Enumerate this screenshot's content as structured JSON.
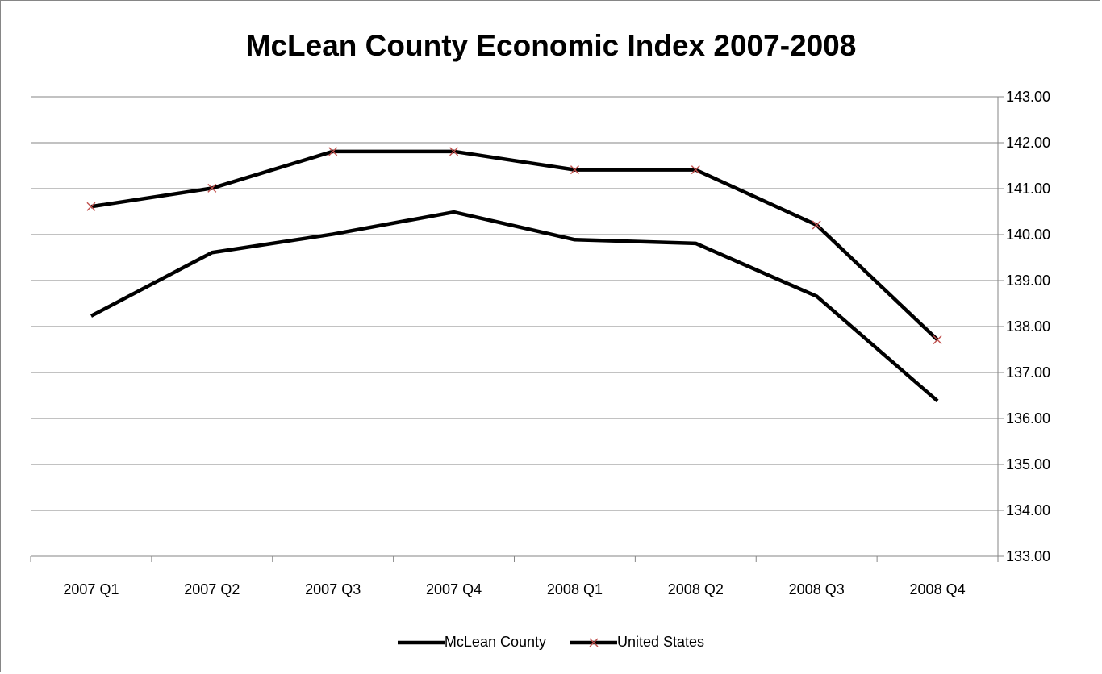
{
  "chart_data": {
    "type": "line",
    "title": "McLean County Economic Index 2007-2008",
    "categories": [
      "2007 Q1",
      "2007 Q2",
      "2007 Q3",
      "2007 Q4",
      "2008 Q1",
      "2008 Q2",
      "2008 Q3",
      "2008 Q4"
    ],
    "ylim": [
      133,
      143
    ],
    "y_ticks": [
      "133.00",
      "134.00",
      "135.00",
      "136.00",
      "137.00",
      "138.00",
      "139.00",
      "140.00",
      "141.00",
      "142.00",
      "143.00"
    ],
    "y_axis_side": "right",
    "grid": true,
    "legend_position": "bottom",
    "series": [
      {
        "name": "McLean County",
        "values": [
          138.23,
          139.61,
          140.01,
          140.49,
          139.89,
          139.81,
          138.66,
          136.38
        ],
        "color": "#000000",
        "marker": "none"
      },
      {
        "name": "United States",
        "values": [
          140.61,
          141.01,
          141.81,
          141.81,
          141.41,
          141.41,
          140.21,
          137.71
        ],
        "color": "#000000",
        "marker": "x",
        "marker_color": "#c0504d"
      }
    ]
  }
}
